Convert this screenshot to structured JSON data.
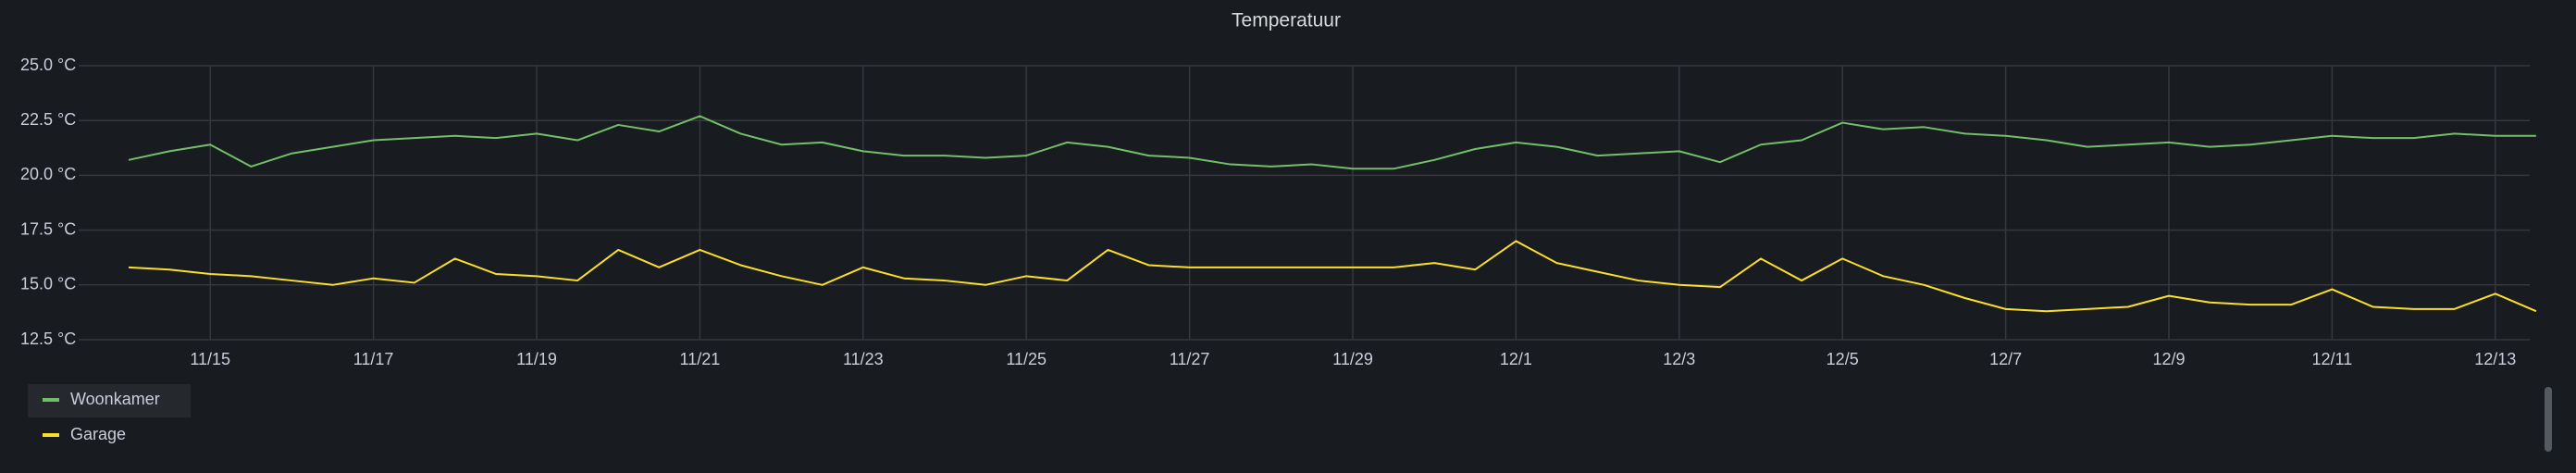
{
  "chart_data": {
    "type": "line",
    "title": "Temperatuur",
    "categories": [
      null,
      null,
      "11/15",
      null,
      null,
      null,
      "11/17",
      null,
      null,
      null,
      "11/19",
      null,
      null,
      null,
      "11/21",
      null,
      null,
      null,
      "11/23",
      null,
      null,
      null,
      "11/25",
      null,
      null,
      null,
      "11/27",
      null,
      null,
      null,
      "11/29",
      null,
      null,
      null,
      "12/1",
      null,
      null,
      null,
      "12/3",
      null,
      null,
      null,
      "12/5",
      null,
      null,
      null,
      "12/7",
      null,
      null,
      null,
      "12/9",
      null,
      null,
      null,
      "12/11",
      null,
      null,
      null,
      "12/13",
      null
    ],
    "series": [
      {
        "name": "Woonkamer",
        "color": "#73bf69",
        "values": [
          20.7,
          21.1,
          21.4,
          20.4,
          21.0,
          21.3,
          21.6,
          21.7,
          21.8,
          21.7,
          21.9,
          21.6,
          22.3,
          22.0,
          22.7,
          21.9,
          21.4,
          21.5,
          21.1,
          20.9,
          20.9,
          20.8,
          20.9,
          21.5,
          21.3,
          20.9,
          20.8,
          20.5,
          20.4,
          20.5,
          20.3,
          20.3,
          20.7,
          21.2,
          21.5,
          21.3,
          20.9,
          21.0,
          21.1,
          20.6,
          21.4,
          21.6,
          22.4,
          22.1,
          22.2,
          21.9,
          21.8,
          21.6,
          21.3,
          21.4,
          21.5,
          21.3,
          21.4,
          21.6,
          21.8,
          21.7,
          21.7,
          21.9,
          21.8,
          21.8
        ]
      },
      {
        "name": "Garage",
        "color": "#fade2a",
        "values": [
          15.8,
          15.7,
          15.5,
          15.4,
          15.2,
          15.0,
          15.3,
          15.1,
          16.2,
          15.5,
          15.4,
          15.2,
          16.6,
          15.8,
          16.6,
          15.9,
          15.4,
          15.0,
          15.8,
          15.3,
          15.2,
          15.0,
          15.4,
          15.2,
          16.6,
          15.9,
          15.8,
          15.8,
          15.8,
          15.8,
          15.8,
          15.8,
          16.0,
          15.7,
          17.0,
          16.0,
          15.6,
          15.2,
          15.0,
          14.9,
          16.2,
          15.2,
          16.2,
          15.4,
          15.0,
          14.4,
          13.9,
          13.8,
          13.9,
          14.0,
          14.5,
          14.2,
          14.1,
          14.1,
          14.8,
          14.0,
          13.9,
          13.9,
          14.6,
          13.8
        ]
      }
    ],
    "ylim": [
      12.5,
      25
    ],
    "yticks": [
      {
        "value": 12.5,
        "label": "12.5 °C"
      },
      {
        "value": 15,
        "label": "15.0 °C"
      },
      {
        "value": 17.5,
        "label": "17.5 °C"
      },
      {
        "value": 20,
        "label": "20.0 °C"
      },
      {
        "value": 22.5,
        "label": "22.5 °C"
      },
      {
        "value": 25,
        "label": "25.0 °C"
      }
    ],
    "grid": true
  }
}
